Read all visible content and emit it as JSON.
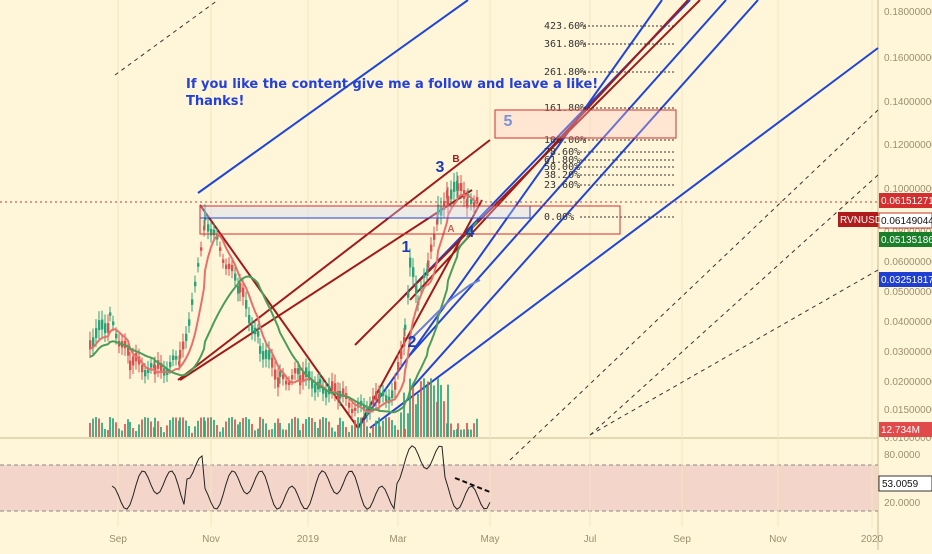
{
  "chart_data": {
    "type": "line",
    "symbol": "RVNUSD",
    "x_ticks": [
      "Sep",
      "Nov",
      "2019",
      "Mar",
      "May",
      "Jul",
      "Sep",
      "Nov",
      "2020"
    ],
    "price_axis_ticks": [
      "0.18000000",
      "0.16000000",
      "0.14000000",
      "0.12000000",
      "0.10000000",
      "0.08000000",
      "0.06000000",
      "0.05000000",
      "0.04000000",
      "0.03000000",
      "0.02000000",
      "0.01500000",
      "0.01000000"
    ],
    "price_badges": [
      {
        "value": "0.06151271",
        "color": "#d32f2f"
      },
      {
        "value": "0.06149044",
        "color": "#ffffff"
      },
      {
        "value": "0.05135186",
        "color": "#1b7f2a"
      },
      {
        "value": "0.03251817",
        "color": "#1e3fd1"
      },
      {
        "value": "12.734M",
        "color": "#e04a4a"
      }
    ],
    "symbol_badge": "RVNUSD",
    "rsi": {
      "value": "53.0059",
      "upper": "80.0000",
      "lower": "20.0000"
    },
    "annotation": {
      "line1": "If you like the content give me a follow and leave a like!",
      "line2": "Thanks!"
    },
    "fib_levels": [
      "423.60%",
      "361.80%",
      "261.80%",
      "161.80%",
      "100.00%",
      "78.60%",
      "61.80%",
      "50.00%",
      "38.20%",
      "23.60%",
      "0.00%"
    ],
    "wave_labels": [
      "1",
      "2",
      "3",
      "4",
      "5",
      "A",
      "B"
    ],
    "colors": {
      "background": "#fff6d9",
      "channel": "#1f45d6",
      "trend": "#a11a1a",
      "bull": "#2aa37a",
      "bear": "#d9534f",
      "ma_fast": "#e8706a",
      "ma_slow": "#4a9d5a",
      "ma_blue": "#6a7fd8",
      "rsi_band": "#f3d5c9"
    }
  }
}
